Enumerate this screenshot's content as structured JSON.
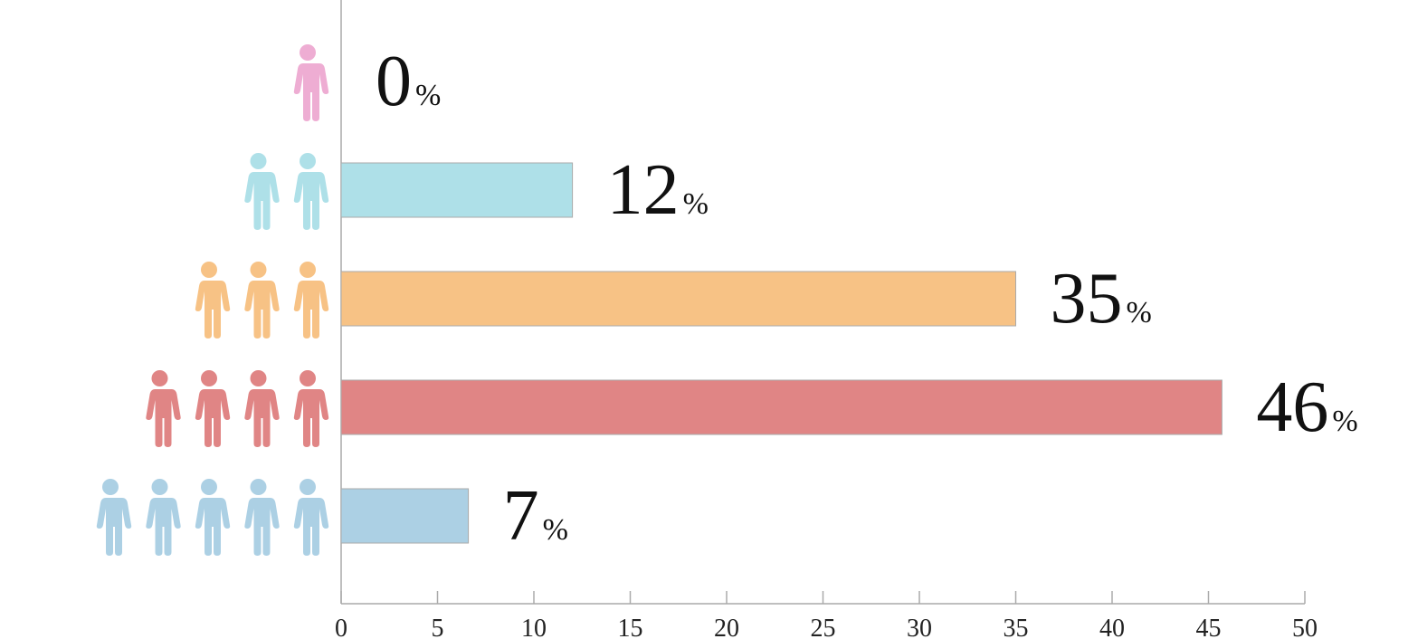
{
  "chart_data": {
    "type": "barh",
    "categories": [
      null,
      null,
      null,
      null,
      null
    ],
    "values": [
      0,
      12,
      35,
      45.7,
      6.6
    ],
    "value_labels": [
      "0%",
      "12%",
      "35%",
      "46%",
      "7%"
    ],
    "colors": [
      "#eeadd3",
      "#aee0e8",
      "#f7c285",
      "#e08585",
      "#acd0e4"
    ],
    "icon_counts": [
      1,
      2,
      3,
      4,
      5
    ],
    "xlim": [
      0,
      50
    ],
    "xticks": [
      0,
      5,
      10,
      15,
      20,
      25,
      30,
      35,
      40,
      45,
      50
    ]
  }
}
